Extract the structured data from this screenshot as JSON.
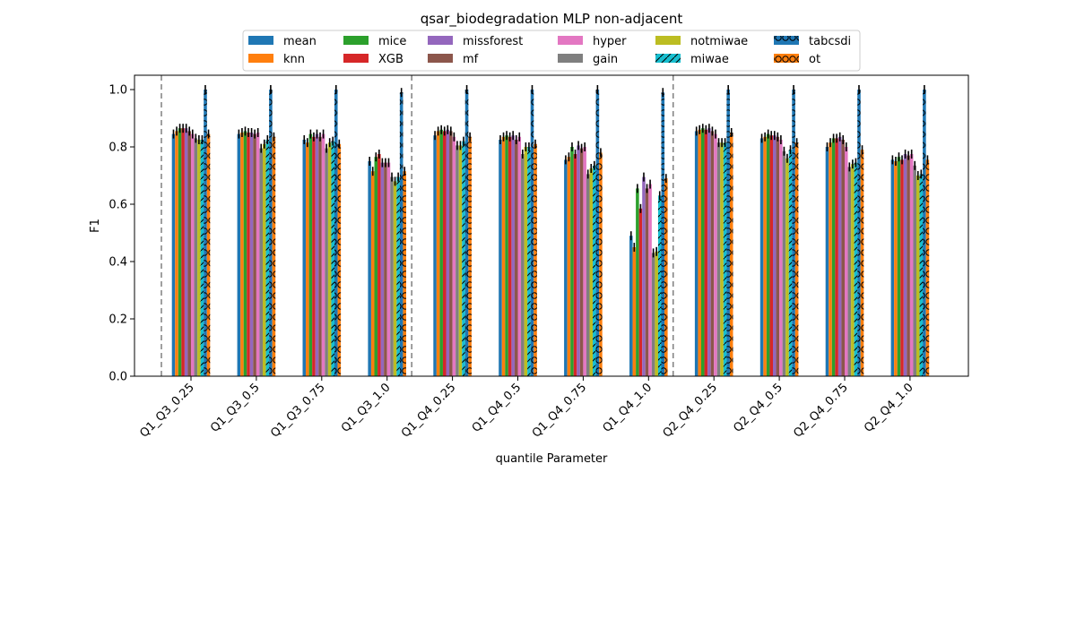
{
  "chart_data": {
    "type": "bar",
    "title": "qsar_biodegradation MLP non-adjacent",
    "xlabel": "quantile Parameter",
    "ylabel": "F1",
    "ylim": [
      0,
      1.05
    ],
    "yticks": [
      "0.0",
      "0.2",
      "0.4",
      "0.6",
      "0.8",
      "1.0"
    ],
    "grid": false,
    "legend_position": "top-center",
    "categories": [
      "Q1_Q3_0.25",
      "Q1_Q3_0.5",
      "Q1_Q3_0.75",
      "Q1_Q3_1.0",
      "Q1_Q4_0.25",
      "Q1_Q4_0.5",
      "Q1_Q4_0.75",
      "Q1_Q4_1.0",
      "Q2_Q4_0.25",
      "Q2_Q4_0.5",
      "Q2_Q4_0.75",
      "Q2_Q4_1.0"
    ],
    "group_separators_after": [
      "Q1_Q3_1.0",
      "Q1_Q4_1.0"
    ],
    "series": [
      {
        "name": "mean",
        "color": "#1f77b4",
        "hatch": "none",
        "values": [
          0.845,
          0.845,
          0.825,
          0.75,
          0.84,
          0.825,
          0.755,
          0.49,
          0.855,
          0.83,
          0.8,
          0.755
        ]
      },
      {
        "name": "knn",
        "color": "#ff7f0e",
        "hatch": "none",
        "values": [
          0.855,
          0.85,
          0.815,
          0.715,
          0.855,
          0.835,
          0.765,
          0.45,
          0.86,
          0.835,
          0.815,
          0.75
        ]
      },
      {
        "name": "mice",
        "color": "#2ca02c",
        "hatch": "none",
        "values": [
          0.865,
          0.855,
          0.845,
          0.765,
          0.86,
          0.84,
          0.8,
          0.655,
          0.865,
          0.845,
          0.83,
          0.765
        ]
      },
      {
        "name": "XGB",
        "color": "#d62728",
        "hatch": "none",
        "values": [
          0.865,
          0.85,
          0.835,
          0.775,
          0.855,
          0.835,
          0.775,
          0.585,
          0.86,
          0.84,
          0.83,
          0.755
        ]
      },
      {
        "name": "missforest",
        "color": "#9467bd",
        "hatch": "none",
        "values": [
          0.865,
          0.85,
          0.845,
          0.745,
          0.86,
          0.84,
          0.805,
          0.695,
          0.865,
          0.84,
          0.835,
          0.775
        ]
      },
      {
        "name": "mf",
        "color": "#8c564b",
        "hatch": "none",
        "values": [
          0.855,
          0.845,
          0.835,
          0.745,
          0.855,
          0.825,
          0.795,
          0.655,
          0.855,
          0.835,
          0.825,
          0.77
        ]
      },
      {
        "name": "hyper",
        "color": "#e377c2",
        "hatch": "none",
        "values": [
          0.845,
          0.85,
          0.845,
          0.745,
          0.835,
          0.835,
          0.8,
          0.67,
          0.845,
          0.825,
          0.8,
          0.775
        ]
      },
      {
        "name": "gain",
        "color": "#7f7f7f",
        "hatch": "none",
        "values": [
          0.83,
          0.795,
          0.795,
          0.695,
          0.805,
          0.775,
          0.705,
          0.43,
          0.815,
          0.785,
          0.73,
          0.735
        ]
      },
      {
        "name": "notmiwae",
        "color": "#bcbd22",
        "hatch": "none",
        "values": [
          0.825,
          0.81,
          0.815,
          0.68,
          0.805,
          0.8,
          0.725,
          0.435,
          0.815,
          0.76,
          0.74,
          0.7
        ]
      },
      {
        "name": "miwae",
        "color": "#17becf",
        "hatch": "diagonal",
        "values": [
          0.825,
          0.825,
          0.82,
          0.695,
          0.82,
          0.8,
          0.735,
          0.63,
          0.815,
          0.79,
          0.745,
          0.705
        ]
      },
      {
        "name": "tabcsdi",
        "color": "#1f77b4",
        "hatch": "circles",
        "values": [
          1.0,
          1.0,
          1.0,
          0.99,
          1.0,
          1.0,
          1.0,
          0.99,
          1.0,
          1.0,
          1.0,
          1.0
        ]
      },
      {
        "name": "ot",
        "color": "#ff7f0e",
        "hatch": "circles",
        "values": [
          0.845,
          0.835,
          0.81,
          0.715,
          0.835,
          0.81,
          0.78,
          0.69,
          0.85,
          0.815,
          0.79,
          0.755
        ]
      }
    ]
  }
}
